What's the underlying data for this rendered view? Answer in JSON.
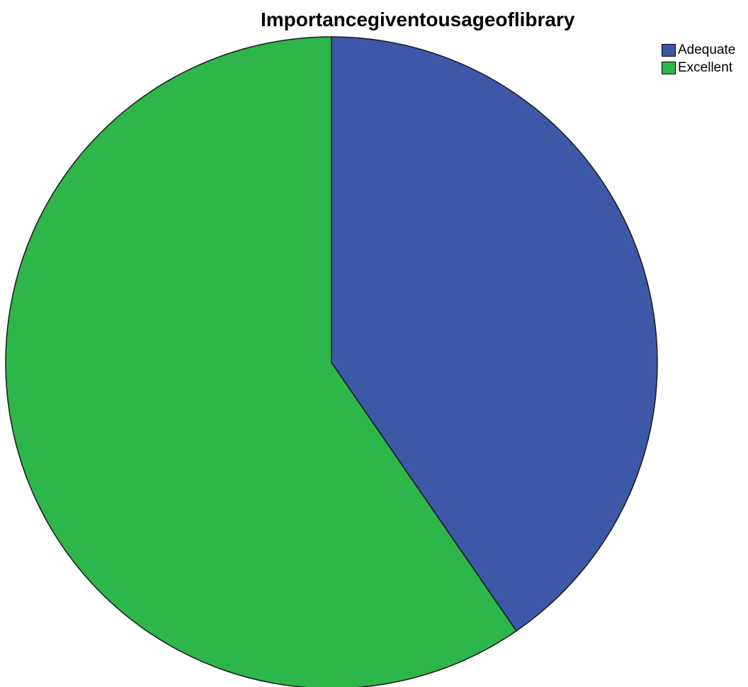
{
  "chart_data": {
    "type": "pie",
    "title": "Importancegiventousageoflibrary",
    "categories": [
      "Adequate",
      "Excellent"
    ],
    "values": [
      40.4,
      59.6
    ],
    "colors": [
      "#3e58a8",
      "#2db64a"
    ],
    "legend_position": "top-right",
    "start_angle": "12 o'clock",
    "direction": "clockwise"
  }
}
